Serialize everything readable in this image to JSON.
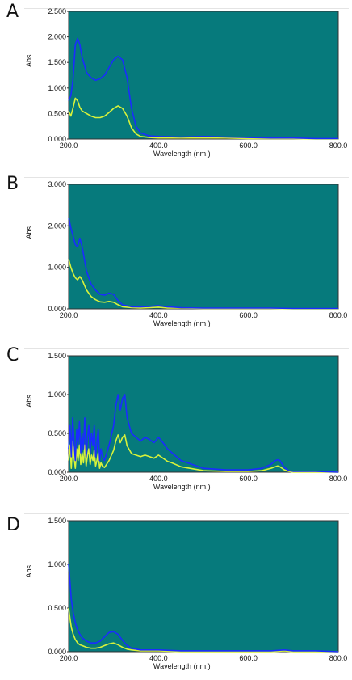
{
  "colors": {
    "plot_bg": "#067a7c",
    "blue_trace": "#1a2cff",
    "yellow_trace": "#d8f23a"
  },
  "chart_data": [
    {
      "panel": "A",
      "type": "line",
      "xlabel": "Wavelength (nm.)",
      "ylabel": "Abs.",
      "xlim": [
        200,
        800
      ],
      "ylim": [
        0,
        2.5
      ],
      "xticks": [
        "200.0",
        "400.0",
        "600.0",
        "800.0"
      ],
      "yticks": [
        "0.000",
        "0.500",
        "1.000",
        "1.500",
        "2.000",
        "2.500"
      ],
      "series": [
        {
          "color": "blue",
          "x": [
            200,
            205,
            210,
            215,
            220,
            225,
            230,
            240,
            250,
            260,
            270,
            280,
            290,
            300,
            310,
            320,
            330,
            340,
            350,
            360,
            380,
            400,
            450,
            500,
            550,
            600,
            650,
            700,
            750,
            800
          ],
          "y": [
            0.75,
            0.85,
            1.2,
            1.85,
            1.97,
            1.85,
            1.6,
            1.3,
            1.2,
            1.15,
            1.18,
            1.25,
            1.4,
            1.55,
            1.62,
            1.55,
            1.2,
            0.6,
            0.25,
            0.12,
            0.06,
            0.05,
            0.04,
            0.05,
            0.04,
            0.03,
            0.02,
            0.02,
            0.01,
            0.01
          ]
        },
        {
          "color": "yellow",
          "x": [
            200,
            205,
            210,
            215,
            220,
            225,
            230,
            240,
            250,
            260,
            270,
            280,
            290,
            300,
            310,
            320,
            330,
            340,
            350,
            360,
            380,
            400,
            450,
            500,
            550,
            600,
            650,
            700,
            750,
            800
          ],
          "y": [
            0.55,
            0.45,
            0.62,
            0.8,
            0.75,
            0.62,
            0.55,
            0.5,
            0.45,
            0.42,
            0.42,
            0.45,
            0.52,
            0.6,
            0.65,
            0.6,
            0.45,
            0.22,
            0.1,
            0.05,
            0.03,
            0.02,
            0.02,
            0.02,
            0.02,
            0.01,
            0.01,
            0.01,
            0.0,
            0.0
          ]
        }
      ]
    },
    {
      "panel": "B",
      "type": "line",
      "xlabel": "Wavelength (nm.)",
      "ylabel": "Abs.",
      "xlim": [
        200,
        800
      ],
      "ylim": [
        0,
        3.0
      ],
      "xticks": [
        "200.0",
        "400.0",
        "600.0",
        "800.0"
      ],
      "yticks": [
        "0.000",
        "1.000",
        "2.000",
        "3.000"
      ],
      "series": [
        {
          "color": "blue",
          "x": [
            200,
            205,
            210,
            215,
            220,
            225,
            230,
            240,
            250,
            260,
            270,
            280,
            290,
            300,
            310,
            320,
            340,
            360,
            380,
            400,
            420,
            450,
            500,
            550,
            600,
            650,
            700,
            750,
            800
          ],
          "y": [
            2.2,
            1.95,
            1.75,
            1.55,
            1.5,
            1.7,
            1.5,
            0.9,
            0.6,
            0.45,
            0.35,
            0.33,
            0.38,
            0.35,
            0.2,
            0.1,
            0.05,
            0.05,
            0.06,
            0.08,
            0.05,
            0.03,
            0.02,
            0.02,
            0.02,
            0.02,
            0.01,
            0.01,
            0.01
          ]
        },
        {
          "color": "yellow",
          "x": [
            200,
            205,
            210,
            215,
            220,
            225,
            230,
            240,
            250,
            260,
            270,
            280,
            290,
            300,
            310,
            320,
            340,
            360,
            380,
            400,
            420,
            450,
            500,
            550,
            600,
            650,
            700,
            750,
            800
          ],
          "y": [
            1.2,
            1.0,
            0.85,
            0.75,
            0.7,
            0.78,
            0.7,
            0.45,
            0.3,
            0.22,
            0.17,
            0.16,
            0.18,
            0.16,
            0.1,
            0.05,
            0.03,
            0.02,
            0.03,
            0.04,
            0.02,
            0.02,
            0.01,
            0.01,
            0.01,
            0.01,
            0.0,
            0.0,
            0.0
          ]
        }
      ]
    },
    {
      "panel": "C",
      "type": "line",
      "xlabel": "Wavelength (nm.)",
      "ylabel": "Abs.",
      "xlim": [
        200,
        800
      ],
      "ylim": [
        0,
        1.5
      ],
      "xticks": [
        "200.0",
        "400.0",
        "600.0",
        "800.0"
      ],
      "yticks": [
        "0.000",
        "0.500",
        "1.000",
        "1.500"
      ],
      "series": [
        {
          "color": "blue",
          "x": [
            200,
            203,
            206,
            209,
            212,
            215,
            218,
            221,
            224,
            227,
            230,
            233,
            236,
            239,
            242,
            245,
            248,
            251,
            254,
            257,
            260,
            263,
            266,
            269,
            272,
            275,
            280,
            290,
            300,
            305,
            310,
            315,
            320,
            325,
            330,
            340,
            350,
            360,
            370,
            380,
            390,
            400,
            410,
            420,
            430,
            450,
            500,
            550,
            600,
            630,
            650,
            660,
            665,
            670,
            680,
            690,
            700,
            750,
            800
          ],
          "y": [
            0.3,
            0.6,
            0.2,
            0.7,
            0.4,
            0.15,
            0.55,
            0.35,
            0.65,
            0.25,
            0.5,
            0.3,
            0.7,
            0.2,
            0.45,
            0.6,
            0.25,
            0.5,
            0.35,
            0.6,
            0.2,
            0.4,
            0.55,
            0.15,
            0.3,
            0.2,
            0.15,
            0.35,
            0.6,
            0.85,
            1.0,
            0.8,
            0.95,
            1.0,
            0.7,
            0.5,
            0.45,
            0.4,
            0.45,
            0.42,
            0.38,
            0.45,
            0.38,
            0.3,
            0.25,
            0.15,
            0.05,
            0.03,
            0.03,
            0.05,
            0.1,
            0.15,
            0.16,
            0.15,
            0.06,
            0.02,
            0.01,
            0.01,
            0.0
          ]
        },
        {
          "color": "yellow",
          "x": [
            200,
            203,
            206,
            209,
            212,
            215,
            218,
            221,
            224,
            227,
            230,
            233,
            236,
            239,
            242,
            245,
            248,
            251,
            254,
            257,
            260,
            263,
            266,
            269,
            272,
            275,
            280,
            290,
            300,
            305,
            310,
            315,
            320,
            325,
            330,
            340,
            350,
            360,
            370,
            380,
            390,
            400,
            410,
            420,
            430,
            450,
            500,
            550,
            600,
            630,
            650,
            660,
            665,
            670,
            680,
            690,
            700,
            750,
            800
          ],
          "y": [
            0.15,
            0.35,
            0.05,
            0.4,
            0.2,
            0.05,
            0.3,
            0.15,
            0.35,
            0.1,
            0.25,
            0.12,
            0.35,
            0.08,
            0.22,
            0.3,
            0.1,
            0.22,
            0.15,
            0.28,
            0.08,
            0.15,
            0.25,
            0.05,
            0.12,
            0.08,
            0.06,
            0.15,
            0.28,
            0.4,
            0.48,
            0.38,
            0.45,
            0.48,
            0.34,
            0.24,
            0.22,
            0.2,
            0.22,
            0.2,
            0.18,
            0.22,
            0.18,
            0.14,
            0.12,
            0.07,
            0.02,
            0.01,
            0.01,
            0.02,
            0.05,
            0.07,
            0.08,
            0.07,
            0.03,
            0.01,
            0.0,
            0.0,
            0.0
          ]
        }
      ]
    },
    {
      "panel": "D",
      "type": "line",
      "xlabel": "Wavelength (nm.)",
      "ylabel": "Abs.",
      "xlim": [
        200,
        800
      ],
      "ylim": [
        0,
        1.5
      ],
      "xticks": [
        "200.0",
        "400.0",
        "600.0",
        "800.0"
      ],
      "yticks": [
        "0.000",
        "0.500",
        "1.000",
        "1.500"
      ],
      "series": [
        {
          "color": "blue",
          "x": [
            200,
            203,
            206,
            210,
            215,
            220,
            225,
            230,
            240,
            250,
            260,
            270,
            280,
            290,
            300,
            310,
            320,
            330,
            340,
            360,
            380,
            400,
            450,
            500,
            550,
            600,
            650,
            680,
            700,
            750,
            800
          ],
          "y": [
            1.0,
            0.8,
            0.6,
            0.45,
            0.33,
            0.25,
            0.2,
            0.16,
            0.12,
            0.1,
            0.1,
            0.12,
            0.17,
            0.22,
            0.23,
            0.2,
            0.13,
            0.07,
            0.04,
            0.02,
            0.02,
            0.02,
            0.01,
            0.01,
            0.01,
            0.01,
            0.01,
            0.02,
            0.01,
            0.01,
            0.0
          ]
        },
        {
          "color": "yellow",
          "x": [
            200,
            203,
            206,
            210,
            215,
            220,
            225,
            230,
            240,
            250,
            260,
            270,
            280,
            290,
            300,
            310,
            320,
            330,
            340,
            360,
            380,
            400,
            450,
            500,
            550,
            600,
            650,
            680,
            700,
            750,
            800
          ],
          "y": [
            0.5,
            0.38,
            0.28,
            0.2,
            0.14,
            0.1,
            0.08,
            0.07,
            0.05,
            0.04,
            0.04,
            0.05,
            0.07,
            0.09,
            0.1,
            0.08,
            0.05,
            0.03,
            0.02,
            0.01,
            0.01,
            0.01,
            0.0,
            0.0,
            0.0,
            0.0,
            0.0,
            0.01,
            0.0,
            0.0,
            0.0
          ]
        }
      ]
    }
  ]
}
